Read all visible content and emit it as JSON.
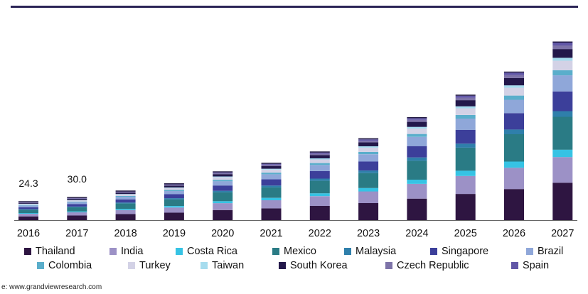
{
  "chart_data": {
    "type": "bar",
    "stacked": true,
    "categories": [
      "2016",
      "2017",
      "2018",
      "2019",
      "2020",
      "2021",
      "2022",
      "2023",
      "2024",
      "2025",
      "2026",
      "2027"
    ],
    "value_labels": {
      "2016": "24.3",
      "2017": "30.0"
    },
    "series": [
      {
        "name": "Thailand",
        "color": "#2e1541",
        "values": [
          5.1,
          6.3,
          8.2,
          10.2,
          13.7,
          16.0,
          19.3,
          23.1,
          29.2,
          35.6,
          42.2,
          50.8
        ]
      },
      {
        "name": "India",
        "color": "#9c91c6",
        "values": [
          3.5,
          4.3,
          5.6,
          7.0,
          9.3,
          11.0,
          13.2,
          15.9,
          20.0,
          24.4,
          28.9,
          34.8
        ]
      },
      {
        "name": "Costa Rica",
        "color": "#36c3e4",
        "values": [
          1.0,
          1.3,
          1.6,
          2.0,
          2.7,
          3.2,
          3.9,
          4.6,
          5.8,
          7.1,
          8.4,
          10.1
        ]
      },
      {
        "name": "Mexico",
        "color": "#2a7b85",
        "values": [
          4.5,
          5.5,
          7.2,
          9.0,
          12.0,
          14.2,
          17.0,
          20.3,
          25.6,
          31.3,
          37.1,
          44.6
        ]
      },
      {
        "name": "Malaysia",
        "color": "#2f7fab",
        "values": [
          0.8,
          1.0,
          1.3,
          1.6,
          2.1,
          2.5,
          3.0,
          3.5,
          4.5,
          5.4,
          6.4,
          7.7
        ]
      },
      {
        "name": "Singapore",
        "color": "#3c3f9a",
        "values": [
          2.7,
          3.3,
          4.3,
          5.4,
          7.2,
          8.5,
          10.2,
          12.2,
          15.4,
          18.8,
          22.3,
          26.8
        ]
      },
      {
        "name": "Brazil",
        "color": "#8fa7d9",
        "values": [
          2.2,
          2.7,
          3.5,
          4.4,
          5.9,
          6.9,
          8.3,
          9.9,
          12.5,
          15.3,
          18.1,
          21.8
        ]
      },
      {
        "name": "Colombia",
        "color": "#5aaecb",
        "values": [
          0.7,
          0.9,
          1.1,
          1.4,
          1.9,
          2.2,
          2.6,
          3.1,
          4.0,
          4.8,
          5.7,
          6.9
        ]
      },
      {
        "name": "Turkey",
        "color": "#d3d2e6",
        "values": [
          1.3,
          1.6,
          2.1,
          2.6,
          3.5,
          4.1,
          4.9,
          5.9,
          7.4,
          9.1,
          10.7,
          12.9
        ]
      },
      {
        "name": "Taiwan",
        "color": "#a6dcee",
        "values": [
          0.4,
          0.5,
          0.6,
          0.8,
          1.0,
          1.2,
          1.5,
          1.8,
          2.2,
          2.7,
          3.2,
          3.9
        ]
      },
      {
        "name": "South Korea",
        "color": "#23184a",
        "values": [
          1.2,
          1.5,
          1.9,
          2.4,
          3.2,
          3.8,
          4.5,
          5.4,
          6.8,
          8.3,
          9.9,
          11.9
        ]
      },
      {
        "name": "Czech Republic",
        "color": "#7d73a8",
        "values": [
          0.5,
          0.6,
          0.8,
          1.0,
          1.3,
          1.6,
          1.9,
          2.2,
          2.8,
          3.4,
          4.1,
          4.9
        ]
      },
      {
        "name": "Spain",
        "color": "#6157a7",
        "values": [
          0.4,
          0.5,
          0.6,
          0.8,
          1.0,
          1.2,
          1.5,
          1.8,
          2.2,
          2.7,
          3.2,
          3.9
        ]
      }
    ]
  },
  "source_text": "e: www.grandviewresearch.com"
}
